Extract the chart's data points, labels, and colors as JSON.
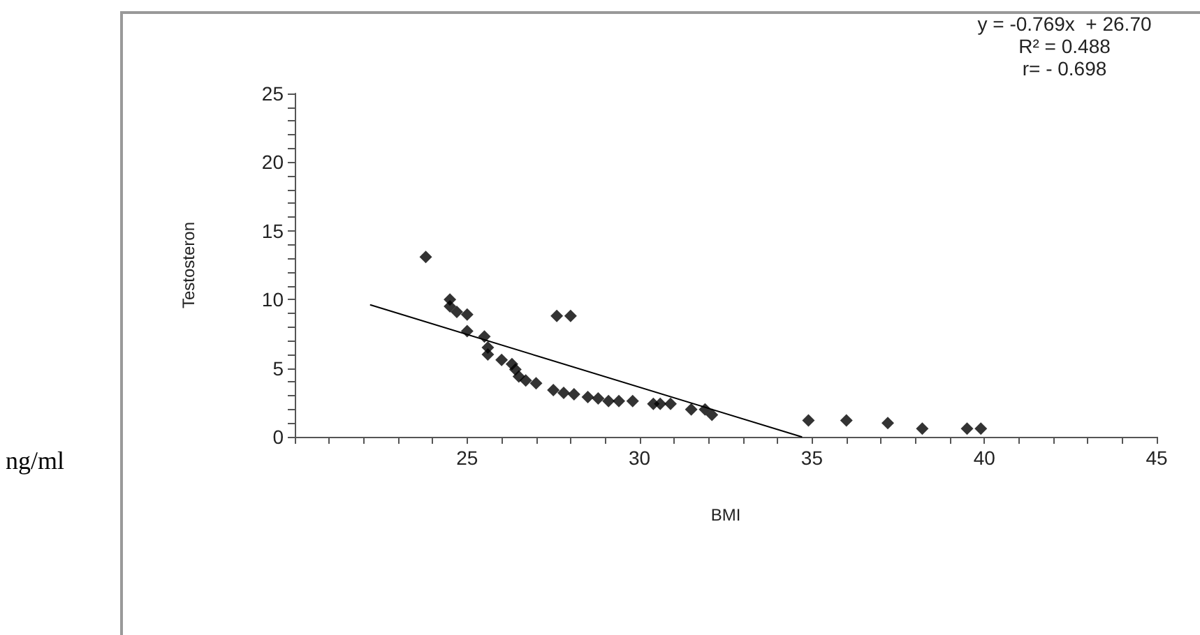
{
  "chart_data": {
    "type": "scatter",
    "xlabel": "BMI",
    "ylabel": "Testosteron",
    "annotations": [
      "y = -0.769x  + 26.70",
      "R² = 0.488",
      "r= - 0.698",
      "ng/ml"
    ],
    "xlim": [
      20,
      45
    ],
    "xticks": [
      {
        "value": 20,
        "label": null
      },
      {
        "value": 21,
        "label": null
      },
      {
        "value": 22,
        "label": null
      },
      {
        "value": 23,
        "label": null
      },
      {
        "value": 24,
        "label": null
      },
      25,
      {
        "value": 26,
        "label": null
      },
      {
        "value": 27,
        "label": null
      },
      {
        "value": 28,
        "label": null
      },
      {
        "value": 29,
        "label": null
      },
      30,
      {
        "value": 31,
        "label": null
      },
      {
        "value": 32,
        "label": null
      },
      {
        "value": 33,
        "label": null
      },
      {
        "value": 34,
        "label": null
      },
      35,
      {
        "value": 36,
        "label": null
      },
      {
        "value": 37,
        "label": null
      },
      {
        "value": 38,
        "label": null
      },
      {
        "value": 39,
        "label": null
      },
      40,
      {
        "value": 41,
        "label": null
      },
      {
        "value": 42,
        "label": null
      },
      {
        "value": 43,
        "label": null
      },
      {
        "value": 44,
        "label": null
      },
      45
    ],
    "ylim": [
      0,
      25
    ],
    "yticks": [
      0,
      {
        "value": 1,
        "label": null
      },
      {
        "value": 2,
        "label": null
      },
      {
        "value": 3,
        "label": null
      },
      {
        "value": 4,
        "label": null
      },
      5,
      {
        "value": 6,
        "label": null
      },
      {
        "value": 7,
        "label": null
      },
      {
        "value": 8,
        "label": null
      },
      {
        "value": 9,
        "label": null
      },
      10,
      {
        "value": 11,
        "label": null
      },
      {
        "value": 12,
        "label": null
      },
      {
        "value": 13,
        "label": null
      },
      {
        "value": 14,
        "label": null
      },
      15,
      {
        "value": 16,
        "label": null
      },
      {
        "value": 17,
        "label": null
      },
      {
        "value": 18,
        "label": null
      },
      {
        "value": 19,
        "label": null
      },
      20,
      {
        "value": 21,
        "label": null
      },
      {
        "value": 22,
        "label": null
      },
      {
        "value": 23,
        "label": null
      },
      {
        "value": 24,
        "label": null
      },
      25
    ],
    "grid": false,
    "marker": "diamond",
    "series": [
      {
        "color": "#000000",
        "x": [
          23.8,
          24.5,
          24.5,
          24.7,
          25.0,
          25.0,
          25.5,
          25.6,
          25.6,
          26.0,
          26.3,
          26.4,
          26.5,
          26.7,
          27.0,
          27.5,
          27.8,
          28.1,
          27.6,
          28.0,
          28.5,
          28.8,
          29.1,
          29.4,
          29.8,
          30.4,
          30.6,
          30.9,
          31.5,
          31.9,
          32.1,
          34.9,
          36.0,
          37.2,
          38.2,
          39.5,
          39.9
        ],
        "values": [
          13.1,
          10.0,
          9.5,
          9.1,
          8.9,
          7.7,
          7.3,
          6.5,
          6.0,
          5.6,
          5.3,
          4.9,
          4.4,
          4.1,
          3.9,
          3.4,
          3.2,
          3.1,
          8.8,
          8.8,
          2.9,
          2.8,
          2.6,
          2.6,
          2.6,
          2.4,
          2.4,
          2.4,
          2.0,
          2.0,
          1.6,
          1.2,
          1.2,
          1.0,
          0.6,
          0.6,
          0.6
        ]
      },
      {
        "type": "line",
        "color": "#000000",
        "marker": "none",
        "line_style": "solid",
        "x": [
          22.2,
          34.7
        ],
        "values": [
          9.6,
          0.0
        ]
      }
    ]
  }
}
